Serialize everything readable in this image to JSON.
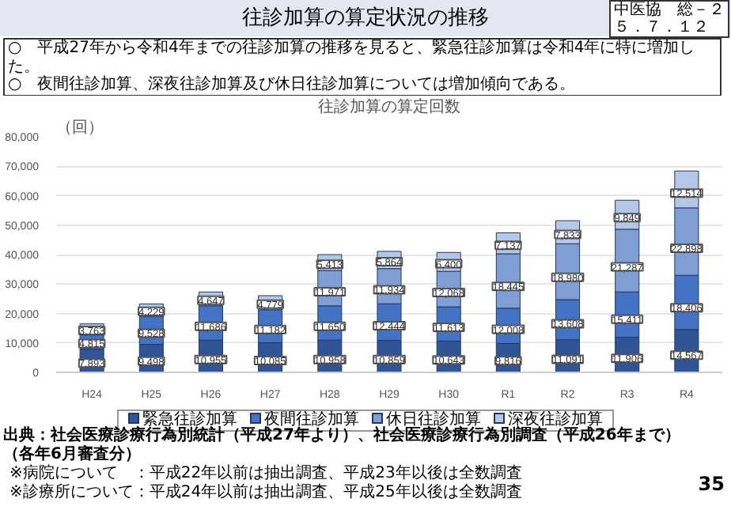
{
  "chart_data": {
    "type": "bar",
    "stacked": true,
    "title": "往診加算の算定状況の推移",
    "subtitle": "往診加算の算定回数",
    "ylabel": "（回）",
    "categories": [
      "H24",
      "H25",
      "H26",
      "H27",
      "H28",
      "H29",
      "H30",
      "R1",
      "R2",
      "R3",
      "R4"
    ],
    "series": [
      {
        "name": "緊急往診加算",
        "color": "#2f5597",
        "values": [
          7893,
          9498,
          10955,
          10085,
          10958,
          10859,
          10643,
          9816,
          11091,
          11906,
          14567
        ],
        "value_labels": [
          "7,893",
          "9,498",
          "10,955",
          "10,085",
          "10,958",
          "10,859",
          "10,643",
          "9,816",
          "11,091",
          "11,906",
          "14,567"
        ]
      },
      {
        "name": "夜間往診加算",
        "color": "#4472c4",
        "values": [
          4815,
          9528,
          11686,
          11182,
          11650,
          12444,
          11613,
          12008,
          13608,
          15411,
          18406
        ],
        "value_labels": [
          "4,815",
          "9,528",
          "11,686",
          "11,182",
          "11,650",
          "12,444",
          "11,613",
          "12,008",
          "13,608",
          "15,411",
          "18,406"
        ]
      },
      {
        "name": "休日往診加算",
        "color": "#7f9fd4",
        "values": [
          null,
          null,
          null,
          null,
          11971,
          11934,
          12068,
          18445,
          18980,
          21287,
          22898
        ],
        "value_labels": [
          null,
          null,
          null,
          null,
          "11,971",
          "11,934",
          "12,068",
          "18,445",
          "18,980",
          "21,287",
          "22,898"
        ]
      },
      {
        "name": "深夜往診加算",
        "color": "#b4c7e7",
        "values": [
          3763,
          4229,
          4647,
          4779,
          5413,
          5864,
          6400,
          7137,
          7833,
          9849,
          12514
        ],
        "value_labels": [
          "3,763",
          "4,229",
          "4,647",
          "4,779",
          "5,413",
          "5,864",
          "6,400",
          "7,137",
          "7,833",
          "9,849",
          "12,514"
        ]
      }
    ],
    "ylim": [
      0,
      80000
    ],
    "yticks": [
      {
        "value": 0,
        "label": "0"
      },
      {
        "value": 10000,
        "label": "10,000"
      },
      {
        "value": 20000,
        "label": "20,000"
      },
      {
        "value": 30000,
        "label": "30,000"
      },
      {
        "value": 40000,
        "label": "40,000"
      },
      {
        "value": 50000,
        "label": "50,000"
      },
      {
        "value": 60000,
        "label": "60,000"
      },
      {
        "value": 70000,
        "label": "70,000"
      },
      {
        "value": 80000,
        "label": "80,000"
      }
    ],
    "grid": "y",
    "legend": "bottom",
    "data_labels": true,
    "annotations": [
      "中医協　総－２",
      "５．７．１２",
      "○　平成27年から令和4年までの往診加算の推移を見ると、緊急往診加算は令和4年に特に増加した。",
      "○　夜間往診加算、深夜往診加算及び休日往診加算については増加傾向である。",
      "出典：社会医療診療行為別統計（平成27年より）、社会医療診療行為別調査（平成26年まで）（各年6月審査分）",
      "※病院について　：平成22年以前は抽出調査、平成23年以後は全数調査",
      "※診療所について：平成24年以前は抽出調査、平成25年以後は全数調査",
      "35"
    ]
  }
}
